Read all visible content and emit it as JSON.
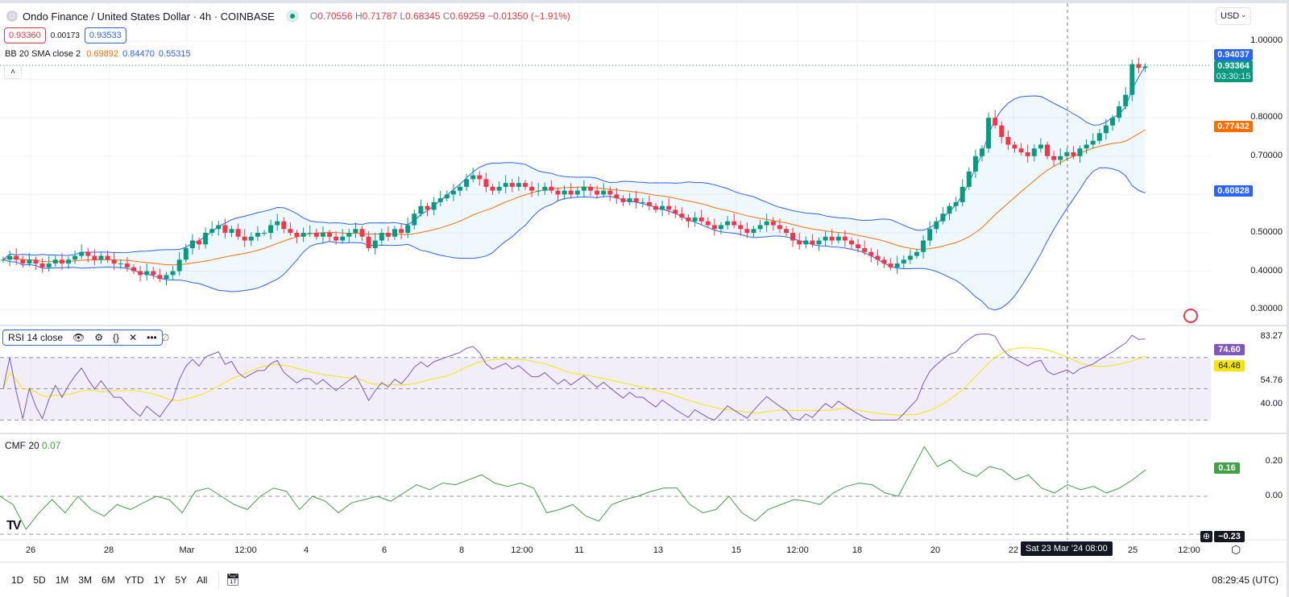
{
  "header": {
    "symbol_logo": "O",
    "title": "Ondo Finance / United States Dollar · 4h · COINBASE",
    "open_label": "O",
    "open": "0.70556",
    "high_label": "H",
    "high": "0.71787",
    "low_label": "L",
    "low": "0.68345",
    "close_label": "C",
    "close": "0.69259",
    "change": "−0.01350 (−1.91%)",
    "bid": "0.93360",
    "spread": "0.00173",
    "ask": "0.93533",
    "currency": "USD"
  },
  "indicators": {
    "bb": {
      "label": "BB 20 SMA close 2",
      "basis": "0.69892",
      "upper": "0.84470",
      "lower": "0.55315",
      "basis_color": "#ff6d00",
      "band_color": "#2962ff"
    },
    "rsi": {
      "label": "RSI 14 close",
      "extra": "∅",
      "value": "74.60",
      "ma": "64.48",
      "color": "#7e57c2",
      "ma_color": "#f7e600"
    },
    "cmf": {
      "label": "CMF 20",
      "value": "0.07",
      "last": "0.16",
      "color": "#43a047"
    }
  },
  "price_axis": {
    "ticks": [
      "1.00000",
      "0.80000",
      "0.70000",
      "0.50000",
      "0.40000",
      "0.30000"
    ],
    "upper_tag": "0.94037",
    "last_price": "0.93364",
    "countdown": "03:30:15",
    "basis_tag": "0.77432",
    "lower_tag": "0.60828"
  },
  "rsi_axis": {
    "ticks": [
      "83.27",
      "54.76",
      "40.00"
    ],
    "value_tag": "74.60",
    "ma_tag": "64.48"
  },
  "cmf_axis": {
    "ticks": [
      "0.20",
      "0.00"
    ],
    "last_tag": "0.16",
    "min_tag": "−0.23"
  },
  "time_axis": {
    "ticks": [
      "26",
      "28",
      "Mar",
      "12:00",
      "4",
      "6",
      "8",
      "12:00",
      "11",
      "13",
      "15",
      "12:00",
      "18",
      "20",
      "22",
      "25",
      "12:00"
    ],
    "crosshair": "Sat 23 Mar '24   08:00"
  },
  "toolbar": {
    "ranges": [
      "1D",
      "5D",
      "1M",
      "3M",
      "6M",
      "YTD",
      "1Y",
      "5Y",
      "All"
    ],
    "clock": "08:29:45 (UTC)"
  },
  "colors": {
    "up": "#089981",
    "down": "#f23645"
  },
  "chart_data": [
    {
      "type": "candlestick",
      "title": "Ondo Finance / United States Dollar · 4h · COINBASE",
      "ylim": [
        0.28,
        1.04
      ],
      "close": [
        0.43,
        0.44,
        0.43,
        0.42,
        0.43,
        0.42,
        0.41,
        0.42,
        0.43,
        0.42,
        0.43,
        0.44,
        0.45,
        0.44,
        0.43,
        0.44,
        0.43,
        0.42,
        0.42,
        0.41,
        0.4,
        0.39,
        0.4,
        0.39,
        0.38,
        0.39,
        0.4,
        0.43,
        0.46,
        0.48,
        0.47,
        0.5,
        0.51,
        0.52,
        0.5,
        0.51,
        0.49,
        0.48,
        0.49,
        0.5,
        0.5,
        0.52,
        0.53,
        0.51,
        0.5,
        0.49,
        0.5,
        0.5,
        0.49,
        0.5,
        0.49,
        0.48,
        0.49,
        0.5,
        0.51,
        0.49,
        0.46,
        0.48,
        0.5,
        0.49,
        0.51,
        0.5,
        0.52,
        0.55,
        0.57,
        0.56,
        0.58,
        0.59,
        0.6,
        0.61,
        0.62,
        0.64,
        0.65,
        0.64,
        0.62,
        0.61,
        0.62,
        0.63,
        0.62,
        0.63,
        0.62,
        0.61,
        0.61,
        0.62,
        0.61,
        0.6,
        0.61,
        0.6,
        0.61,
        0.62,
        0.61,
        0.6,
        0.61,
        0.6,
        0.59,
        0.58,
        0.59,
        0.58,
        0.58,
        0.57,
        0.56,
        0.57,
        0.56,
        0.55,
        0.54,
        0.53,
        0.54,
        0.53,
        0.52,
        0.51,
        0.52,
        0.53,
        0.52,
        0.51,
        0.5,
        0.51,
        0.52,
        0.53,
        0.52,
        0.51,
        0.5,
        0.48,
        0.47,
        0.48,
        0.47,
        0.48,
        0.49,
        0.48,
        0.49,
        0.48,
        0.47,
        0.46,
        0.45,
        0.44,
        0.43,
        0.42,
        0.41,
        0.42,
        0.43,
        0.44,
        0.45,
        0.48,
        0.51,
        0.53,
        0.55,
        0.57,
        0.58,
        0.62,
        0.66,
        0.7,
        0.72,
        0.8,
        0.78,
        0.75,
        0.73,
        0.72,
        0.71,
        0.7,
        0.72,
        0.73,
        0.7,
        0.69,
        0.7,
        0.71,
        0.7,
        0.72,
        0.73,
        0.74,
        0.76,
        0.78,
        0.8,
        0.83,
        0.86,
        0.94,
        0.93,
        0.934
      ]
    },
    {
      "type": "line",
      "title": "RSI 14 close",
      "ylim": [
        30,
        83.27
      ],
      "levels": [
        70,
        50,
        30
      ]
    },
    {
      "type": "line",
      "title": "CMF 20",
      "ylim": [
        -0.23,
        0.3
      ],
      "values": [
        0.0,
        -0.05,
        -0.2,
        -0.1,
        -0.02,
        -0.1,
        0.0,
        -0.08,
        -0.12,
        -0.05,
        -0.08,
        -0.04,
        0.0,
        -0.02,
        -0.1,
        0.03,
        0.05,
        0.0,
        -0.05,
        -0.08,
        0.0,
        0.05,
        0.03,
        -0.08,
        0.0,
        -0.03,
        -0.1,
        -0.04,
        -0.02,
        0.0,
        -0.03,
        0.02,
        0.07,
        0.04,
        0.08,
        0.07,
        0.1,
        0.13,
        0.08,
        0.06,
        0.08,
        0.05,
        -0.1,
        -0.08,
        -0.05,
        -0.12,
        -0.15,
        -0.05,
        -0.02,
        0.0,
        0.03,
        0.05,
        0.05,
        -0.05,
        -0.1,
        -0.08,
        0.0,
        -0.1,
        -0.15,
        -0.08,
        -0.05,
        -0.02,
        -0.03,
        -0.05,
        0.02,
        0.06,
        0.08,
        0.07,
        0.02,
        0.0,
        0.15,
        0.3,
        0.18,
        0.22,
        0.15,
        0.12,
        0.18,
        0.16,
        0.1,
        0.13,
        0.05,
        0.02,
        0.07,
        0.04,
        0.06,
        0.02,
        0.05,
        0.1,
        0.16
      ]
    }
  ]
}
